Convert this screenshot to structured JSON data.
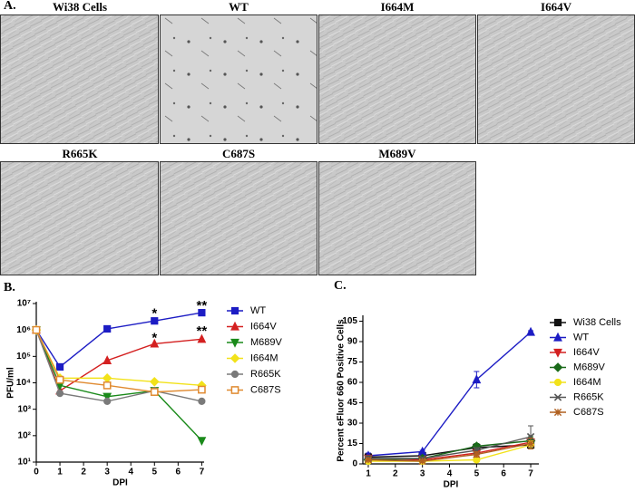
{
  "panel_labels": [
    "A.",
    "B.",
    "C."
  ],
  "images": [
    {
      "title": "Wi38 Cells"
    },
    {
      "title": "WT"
    },
    {
      "title": "I664M"
    },
    {
      "title": "I664V"
    },
    {
      "title": "R665K"
    },
    {
      "title": "C687S"
    },
    {
      "title": "M689V"
    }
  ],
  "chart_data": [
    {
      "type": "line",
      "log_y": true,
      "x_label": "DPI",
      "y_label": "PFU/ml",
      "x": [
        0,
        1,
        3,
        5,
        7
      ],
      "xlim": [
        0,
        7.1
      ],
      "xticks": [
        0,
        1,
        2,
        3,
        4,
        5,
        6,
        7
      ],
      "ylim": [
        10,
        10000000
      ],
      "yticks": [
        {
          "value": 10,
          "label": "10¹"
        },
        {
          "value": 100,
          "label": "10²"
        },
        {
          "value": 1000,
          "label": "10³"
        },
        {
          "value": 10000,
          "label": "10⁴"
        },
        {
          "value": 100000,
          "label": "10⁵"
        },
        {
          "value": 1000000,
          "label": "10⁶"
        },
        {
          "value": 10000000,
          "label": "10⁷"
        }
      ],
      "series": [
        {
          "name": "WT",
          "color": "#1c1cc4",
          "marker": "square",
          "values": [
            1000000,
            40000,
            1100000,
            2200000,
            4500000
          ]
        },
        {
          "name": "I664V",
          "color": "#d42020",
          "marker": "triangle",
          "values": [
            1000000,
            5000,
            70000,
            300000,
            450000
          ]
        },
        {
          "name": "M689V",
          "color": "#1a8a1a",
          "marker": "down",
          "values": [
            1000000,
            8000,
            3000,
            5000,
            65
          ]
        },
        {
          "name": "I664M",
          "color": "#f2e21a",
          "marker": "diamond",
          "values": [
            1000000,
            15000,
            15000,
            11000,
            8000
          ]
        },
        {
          "name": "R665K",
          "color": "#7a7a7a",
          "marker": "circle",
          "values": [
            1000000,
            4000,
            2000,
            5000,
            2000
          ]
        },
        {
          "name": "C687S",
          "color": "#e08a30",
          "marker": "open-square",
          "values": [
            1000000,
            13000,
            8000,
            4500,
            5500
          ]
        }
      ],
      "annotations": [
        {
          "text": "*",
          "x": 5,
          "y": 5000000
        },
        {
          "text": "*",
          "x": 5,
          "y": 600000
        },
        {
          "text": "**",
          "x": 7,
          "y": 10000000
        },
        {
          "text": "**",
          "x": 7,
          "y": 1100000
        }
      ]
    },
    {
      "type": "line",
      "log_y": false,
      "x_label": "DPI",
      "y_label": "Percent eFluor 660 Positive Cells",
      "x": [
        1,
        3,
        5,
        7
      ],
      "xlim": [
        0.8,
        7.3
      ],
      "xticks": [
        1,
        2,
        3,
        4,
        5,
        6,
        7
      ],
      "ylim": [
        0,
        108
      ],
      "yticks": [
        0,
        15,
        30,
        45,
        60,
        75,
        90,
        105
      ],
      "series": [
        {
          "name": "Wi38 Cells",
          "color": "#111111",
          "marker": "square",
          "values": [
            5,
            6,
            12,
            14
          ],
          "errors": [
            2,
            1,
            2,
            2
          ]
        },
        {
          "name": "WT",
          "color": "#1c1cc4",
          "marker": "triangle",
          "values": [
            6,
            9,
            62,
            97
          ],
          "errors": [
            2,
            1,
            6,
            1
          ]
        },
        {
          "name": "I664V",
          "color": "#d42020",
          "marker": "down",
          "values": [
            4,
            3,
            8,
            16
          ],
          "errors": [
            1,
            1,
            2,
            3
          ]
        },
        {
          "name": "M689V",
          "color": "#1a6a1a",
          "marker": "diamond",
          "values": [
            3,
            4,
            13,
            17
          ],
          "errors": [
            1,
            1,
            2,
            3
          ]
        },
        {
          "name": "I664M",
          "color": "#f2e21a",
          "marker": "circle",
          "values": [
            2,
            2,
            3,
            14
          ],
          "errors": [
            1,
            1,
            1,
            3
          ]
        },
        {
          "name": "R665K",
          "color": "#555555",
          "marker": "cross",
          "values": [
            4,
            4,
            10,
            20
          ],
          "errors": [
            2,
            1,
            2,
            8
          ]
        },
        {
          "name": "C687S",
          "color": "#b06020",
          "marker": "star",
          "values": [
            3,
            2,
            7,
            15
          ],
          "errors": [
            1,
            1,
            2,
            4
          ]
        }
      ]
    }
  ]
}
